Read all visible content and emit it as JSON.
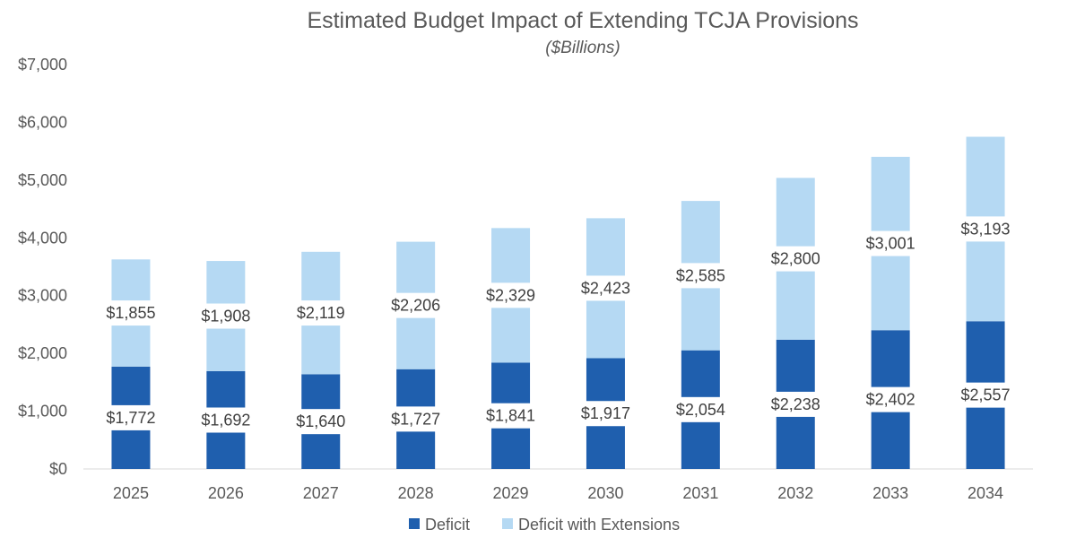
{
  "chart_data": {
    "type": "bar",
    "stacked": true,
    "title": "Estimated Budget Impact of Extending TCJA Provisions",
    "subtitle": "($Billions)",
    "xlabel": "",
    "ylabel": "",
    "categories": [
      "2025",
      "2026",
      "2027",
      "2028",
      "2029",
      "2030",
      "2031",
      "2032",
      "2033",
      "2034"
    ],
    "series": [
      {
        "name": "Deficit",
        "color": "#1f5fae",
        "values": [
          1772,
          1692,
          1640,
          1727,
          1841,
          1917,
          2054,
          2238,
          2402,
          2557
        ],
        "labels": [
          "$1,772",
          "$1,692",
          "$1,640",
          "$1,727",
          "$1,841",
          "$1,917",
          "$2,054",
          "$2,238",
          "$2,402",
          "$2,557"
        ]
      },
      {
        "name": "Deficit with Extensions",
        "color": "#b5d9f3",
        "values": [
          1855,
          1908,
          2119,
          2206,
          2329,
          2423,
          2585,
          2800,
          3001,
          3193
        ],
        "labels": [
          "$1,855",
          "$1,908",
          "$2,119",
          "$2,206",
          "$2,329",
          "$2,423",
          "$2,585",
          "$2,800",
          "$3,001",
          "$3,193"
        ]
      }
    ],
    "ylim": [
      0,
      7000
    ],
    "yticks": [
      0,
      1000,
      2000,
      3000,
      4000,
      5000,
      6000,
      7000
    ],
    "ytick_labels": [
      "$0",
      "$1,000",
      "$2,000",
      "$3,000",
      "$4,000",
      "$5,000",
      "$6,000",
      "$7,000"
    ],
    "grid": false,
    "legend_position": "bottom-center"
  }
}
